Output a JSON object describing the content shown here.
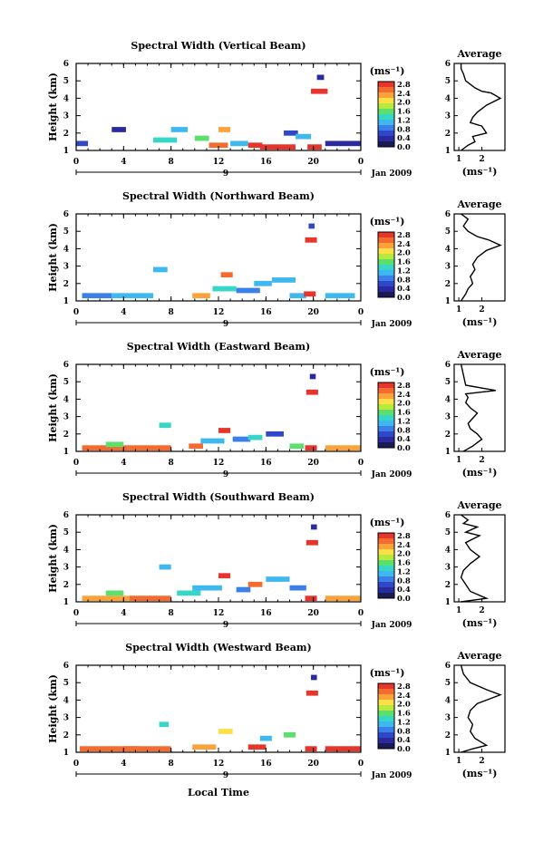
{
  "figure": {
    "date_label": "Jan 2009",
    "day_label": "9",
    "xaxis_label": "Local Time",
    "average_title": "Average",
    "unit_label": "(ms⁻¹)",
    "ylabel": "Height (km)"
  },
  "colorbar": {
    "ticks": [
      "2.8",
      "2.4",
      "2.0",
      "1.6",
      "1.2",
      "0.8",
      "0.4",
      "0.0"
    ],
    "colors": [
      "#e6352a",
      "#f36b2e",
      "#fba33a",
      "#fde047",
      "#b7ea3c",
      "#5de06b",
      "#38d6c6",
      "#3fb8f0",
      "#3b7fe8",
      "#3047c8",
      "#2a2aa0",
      "#1a1a55"
    ]
  },
  "chart_data": [
    {
      "type": "heatmap",
      "title": "Spectral Width (Vertical Beam)",
      "xlabel": "",
      "ylabel": "Height (km)",
      "xlim": [
        0,
        24
      ],
      "ylim": [
        1,
        6
      ],
      "xticks": [
        "0",
        "4",
        "8",
        "12",
        "16",
        "20",
        "0"
      ],
      "yticks": [
        "1",
        "2",
        "3",
        "4",
        "5",
        "6"
      ],
      "cells": [
        [
          0,
          1.4,
          1.0,
          0.4
        ],
        [
          3,
          2.2,
          1.2,
          0.3
        ],
        [
          6.5,
          1.6,
          2.0,
          1.2
        ],
        [
          8,
          2.2,
          1.4,
          0.9
        ],
        [
          10,
          1.7,
          1.2,
          1.5
        ],
        [
          11.2,
          1.3,
          1.6,
          2.6
        ],
        [
          12,
          2.2,
          1.0,
          2.2
        ],
        [
          13,
          1.4,
          1.5,
          1.0
        ],
        [
          14.5,
          1.3,
          1.2,
          2.8
        ],
        [
          15.5,
          1.2,
          3.0,
          2.7
        ],
        [
          17.5,
          2.0,
          1.2,
          0.6
        ],
        [
          18.5,
          1.8,
          1.3,
          1.0
        ],
        [
          19.5,
          1.2,
          1.2,
          2.8
        ],
        [
          19.8,
          4.4,
          1.4,
          2.7
        ],
        [
          20.3,
          5.2,
          0.6,
          0.3
        ],
        [
          21,
          1.4,
          3.0,
          0.2
        ]
      ],
      "profile": {
        "x": [
          1.1,
          1.4,
          1.7,
          1.6,
          2.2,
          2.0,
          1.5,
          1.6,
          1.8,
          2.2,
          2.8,
          2.4,
          2.0,
          1.7,
          1.3,
          1.2,
          1.1,
          1.1
        ],
        "y": [
          1.0,
          1.3,
          1.5,
          1.8,
          2.0,
          2.4,
          2.6,
          2.9,
          3.2,
          3.6,
          4.0,
          4.3,
          4.4,
          4.6,
          5.0,
          5.4,
          5.7,
          6.0
        ],
        "xlim": [
          0.8,
          3.0
        ],
        "xticks": [
          "1",
          "2"
        ]
      }
    },
    {
      "type": "heatmap",
      "title": "Spectral Width (Northward Beam)",
      "xlabel": "",
      "ylabel": "Height (km)",
      "xlim": [
        0,
        24
      ],
      "ylim": [
        1,
        6
      ],
      "xticks": [
        "0",
        "4",
        "8",
        "12",
        "16",
        "20",
        "0"
      ],
      "yticks": [
        "1",
        "2",
        "3",
        "4",
        "5",
        "6"
      ],
      "cells": [
        [
          0.5,
          1.3,
          2.5,
          0.8
        ],
        [
          3,
          1.3,
          3.5,
          1.1
        ],
        [
          6.5,
          2.8,
          1.2,
          1.0
        ],
        [
          9.8,
          1.3,
          1.5,
          2.4
        ],
        [
          11.5,
          1.7,
          2.0,
          1.3
        ],
        [
          12.2,
          2.5,
          1.0,
          2.6
        ],
        [
          13.5,
          1.6,
          2.0,
          0.7
        ],
        [
          15,
          2.0,
          1.5,
          1.1
        ],
        [
          16.5,
          2.2,
          2.0,
          0.9
        ],
        [
          18,
          1.3,
          1.4,
          1.0
        ],
        [
          19.2,
          1.4,
          1.0,
          2.8
        ],
        [
          19.3,
          4.5,
          1.0,
          2.7
        ],
        [
          19.6,
          5.3,
          0.5,
          0.4
        ],
        [
          21,
          1.3,
          2.5,
          0.9
        ]
      ],
      "profile": {
        "x": [
          1.1,
          1.3,
          1.4,
          1.6,
          1.5,
          1.7,
          1.6,
          1.8,
          2.2,
          2.8,
          2.3,
          1.8,
          1.4,
          1.2,
          1.4,
          1.1
        ],
        "y": [
          1.0,
          1.4,
          1.7,
          2.0,
          2.4,
          2.8,
          3.1,
          3.5,
          3.9,
          4.2,
          4.5,
          4.7,
          5.0,
          5.3,
          5.7,
          6.0
        ],
        "xlim": [
          0.8,
          3.0
        ],
        "xticks": [
          "1",
          "2"
        ]
      }
    },
    {
      "type": "heatmap",
      "title": "Spectral Width (Eastward Beam)",
      "xlabel": "",
      "ylabel": "Height (km)",
      "xlim": [
        0,
        24
      ],
      "ylim": [
        1,
        6
      ],
      "xticks": [
        "0",
        "4",
        "8",
        "12",
        "16",
        "20",
        "0"
      ],
      "yticks": [
        "1",
        "2",
        "3",
        "4",
        "5",
        "6"
      ],
      "cells": [
        [
          0.5,
          1.2,
          4.0,
          2.5
        ],
        [
          2.5,
          1.4,
          1.5,
          1.6
        ],
        [
          4.5,
          1.2,
          3.5,
          2.6
        ],
        [
          7,
          2.5,
          1.0,
          1.2
        ],
        [
          9.5,
          1.3,
          1.2,
          2.5
        ],
        [
          10.5,
          1.6,
          2.0,
          1.0
        ],
        [
          12,
          2.2,
          1.0,
          2.7
        ],
        [
          13.2,
          1.7,
          1.5,
          0.8
        ],
        [
          14.5,
          1.8,
          1.2,
          1.4
        ],
        [
          16,
          2.0,
          1.5,
          0.6
        ],
        [
          18,
          1.3,
          1.2,
          1.5
        ],
        [
          19.3,
          1.2,
          1.0,
          2.8
        ],
        [
          19.4,
          4.4,
          1.0,
          2.7
        ],
        [
          19.7,
          5.3,
          0.5,
          0.3
        ],
        [
          21,
          1.2,
          3.0,
          2.4
        ]
      ],
      "profile": {
        "x": [
          1.2,
          1.6,
          2.0,
          1.8,
          1.5,
          1.4,
          1.6,
          1.8,
          1.5,
          1.3,
          1.4,
          1.3,
          2.6,
          1.3,
          1.1
        ],
        "y": [
          1.0,
          1.3,
          1.7,
          2.0,
          2.3,
          2.6,
          2.9,
          3.2,
          3.5,
          3.8,
          4.1,
          4.3,
          4.5,
          4.8,
          6.0
        ],
        "xlim": [
          0.8,
          3.0
        ],
        "xticks": [
          "1",
          "2"
        ]
      }
    },
    {
      "type": "heatmap",
      "title": "Spectral Width (Southward Beam)",
      "xlabel": "",
      "ylabel": "Height (km)",
      "xlim": [
        0,
        24
      ],
      "ylim": [
        1,
        6
      ],
      "xticks": [
        "0",
        "4",
        "8",
        "12",
        "16",
        "20",
        "0"
      ],
      "yticks": [
        "1",
        "2",
        "3",
        "4",
        "5",
        "6"
      ],
      "cells": [
        [
          0.5,
          1.2,
          4.0,
          2.4
        ],
        [
          2.5,
          1.5,
          1.5,
          1.5
        ],
        [
          4.5,
          1.2,
          3.5,
          2.6
        ],
        [
          7,
          3.0,
          1.0,
          1.0
        ],
        [
          8.5,
          1.5,
          2.0,
          1.2
        ],
        [
          9.8,
          1.8,
          2.5,
          1.0
        ],
        [
          12,
          2.5,
          1.0,
          2.7
        ],
        [
          13.5,
          1.7,
          1.2,
          0.8
        ],
        [
          14.5,
          2.0,
          1.2,
          2.6
        ],
        [
          16,
          2.3,
          2.0,
          1.0
        ],
        [
          18,
          1.8,
          1.4,
          0.7
        ],
        [
          19.3,
          1.2,
          1.0,
          2.8
        ],
        [
          19.4,
          4.4,
          1.0,
          2.7
        ],
        [
          19.8,
          5.3,
          0.5,
          0.3
        ],
        [
          21,
          1.2,
          3.0,
          2.4
        ]
      ],
      "profile": {
        "x": [
          1.1,
          2.2,
          1.5,
          1.3,
          1.1,
          1.2,
          1.5,
          1.9,
          1.5,
          1.3,
          1.9,
          1.3,
          1.8,
          1.2,
          1.4,
          1.1
        ],
        "y": [
          1.0,
          1.2,
          1.6,
          2.0,
          2.4,
          2.8,
          3.2,
          3.6,
          4.0,
          4.4,
          4.8,
          5.0,
          5.3,
          5.5,
          5.7,
          6.0
        ],
        "xlim": [
          0.8,
          3.0
        ],
        "xticks": [
          "1",
          "2"
        ]
      }
    },
    {
      "type": "heatmap",
      "title": "Spectral Width (Westward Beam)",
      "xlabel": "Local Time",
      "ylabel": "Height (km)",
      "xlim": [
        0,
        24
      ],
      "ylim": [
        1,
        6
      ],
      "xticks": [
        "0",
        "4",
        "8",
        "12",
        "16",
        "20",
        "0"
      ],
      "yticks": [
        "1",
        "2",
        "3",
        "4",
        "5",
        "6"
      ],
      "cells": [
        [
          0.3,
          1.2,
          5.0,
          2.6
        ],
        [
          4,
          1.2,
          4.0,
          2.5
        ],
        [
          7,
          2.6,
          0.8,
          1.2
        ],
        [
          9.8,
          1.3,
          2.0,
          2.2
        ],
        [
          12,
          2.2,
          1.2,
          2.0
        ],
        [
          14.5,
          1.3,
          1.5,
          2.7
        ],
        [
          15.5,
          1.8,
          1.0,
          1.0
        ],
        [
          17.5,
          2.0,
          1.0,
          1.5
        ],
        [
          19.3,
          1.2,
          1.0,
          2.8
        ],
        [
          19.4,
          4.4,
          1.0,
          2.7
        ],
        [
          19.8,
          5.3,
          0.5,
          0.3
        ],
        [
          21,
          1.2,
          3.0,
          2.7
        ]
      ],
      "profile": {
        "x": [
          1.1,
          1.6,
          2.2,
          1.7,
          1.5,
          1.6,
          1.4,
          1.5,
          1.8,
          2.4,
          2.8,
          2.2,
          1.5,
          1.2,
          1.1
        ],
        "y": [
          1.0,
          1.2,
          1.4,
          1.8,
          2.2,
          2.6,
          3.0,
          3.4,
          3.8,
          4.1,
          4.3,
          4.6,
          5.0,
          5.5,
          6.0
        ],
        "xlim": [
          0.8,
          3.0
        ],
        "xticks": [
          "1",
          "2"
        ]
      }
    }
  ]
}
